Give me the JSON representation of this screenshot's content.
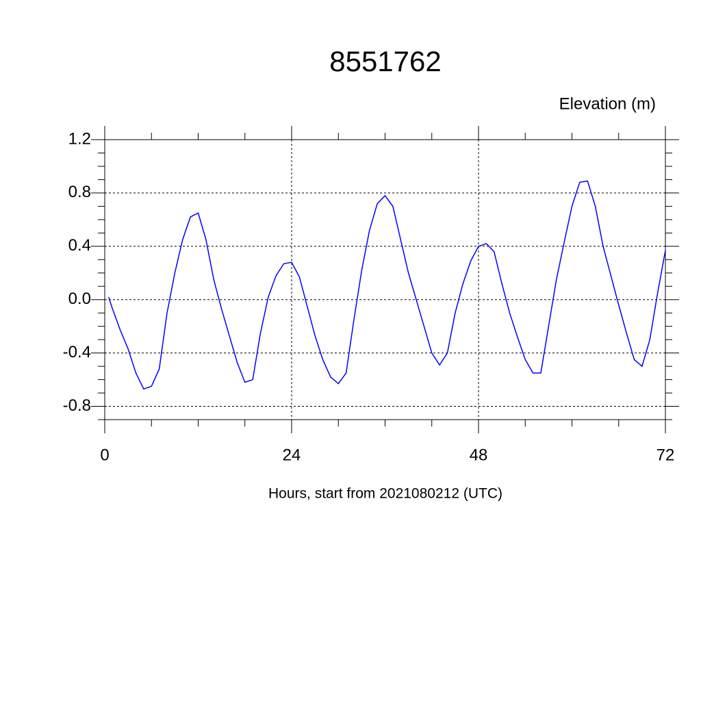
{
  "chart_data": {
    "type": "line",
    "title": "8551762",
    "subtitle": "Elevation (m)",
    "xlabel": "Hours, start from 2021080212 (UTC)",
    "x": [
      0.5,
      1,
      2,
      3,
      4,
      5,
      6,
      7,
      8,
      9,
      10,
      11,
      12,
      13,
      14,
      15,
      16,
      17,
      18,
      19,
      20,
      21,
      22,
      23,
      24,
      25,
      26,
      27,
      28,
      29,
      30,
      31,
      32,
      33,
      34,
      35,
      36,
      37,
      38,
      39,
      40,
      41,
      42,
      43,
      44,
      45,
      46,
      47,
      48,
      49,
      50,
      51,
      52,
      53,
      54,
      55,
      56,
      57,
      58,
      59,
      60,
      61,
      62,
      63,
      64,
      65,
      66,
      67,
      68,
      69,
      70,
      71,
      72
    ],
    "series": [
      {
        "name": "Elevation",
        "color": "#0000ff",
        "values": [
          0.02,
          -0.07,
          -0.23,
          -0.37,
          -0.55,
          -0.67,
          -0.65,
          -0.52,
          -0.1,
          0.2,
          0.45,
          0.62,
          0.65,
          0.45,
          0.15,
          -0.07,
          -0.27,
          -0.47,
          -0.62,
          -0.6,
          -0.25,
          0.02,
          0.18,
          0.27,
          0.28,
          0.17,
          -0.05,
          -0.27,
          -0.45,
          -0.58,
          -0.63,
          -0.55,
          -0.15,
          0.22,
          0.52,
          0.72,
          0.78,
          0.7,
          0.45,
          0.2,
          0.0,
          -0.2,
          -0.4,
          -0.49,
          -0.4,
          -0.1,
          0.12,
          0.29,
          0.4,
          0.42,
          0.36,
          0.12,
          -0.1,
          -0.28,
          -0.45,
          -0.55,
          -0.55,
          -0.2,
          0.15,
          0.43,
          0.7,
          0.88,
          0.89,
          0.7,
          0.4,
          0.18,
          -0.04,
          -0.25,
          -0.45,
          -0.5,
          -0.3,
          0.05,
          0.37
        ]
      }
    ],
    "xlim": [
      0,
      72
    ],
    "xticks": [
      0,
      24,
      48,
      72
    ],
    "xminorticks": [
      6,
      12,
      18,
      30,
      36,
      42,
      54,
      60,
      66
    ],
    "ylim": [
      -0.9,
      1.2
    ],
    "yticks": [
      -0.8,
      -0.4,
      {
        "value": 0,
        "label": "0.0"
      },
      0.4,
      0.8,
      1.2
    ],
    "yminorticks": [
      -0.9,
      -0.7,
      -0.6,
      -0.5,
      -0.3,
      -0.2,
      -0.1,
      0.1,
      0.2,
      0.3,
      0.5,
      0.6,
      0.7,
      0.9,
      1.0,
      1.1
    ],
    "grid": true
  }
}
